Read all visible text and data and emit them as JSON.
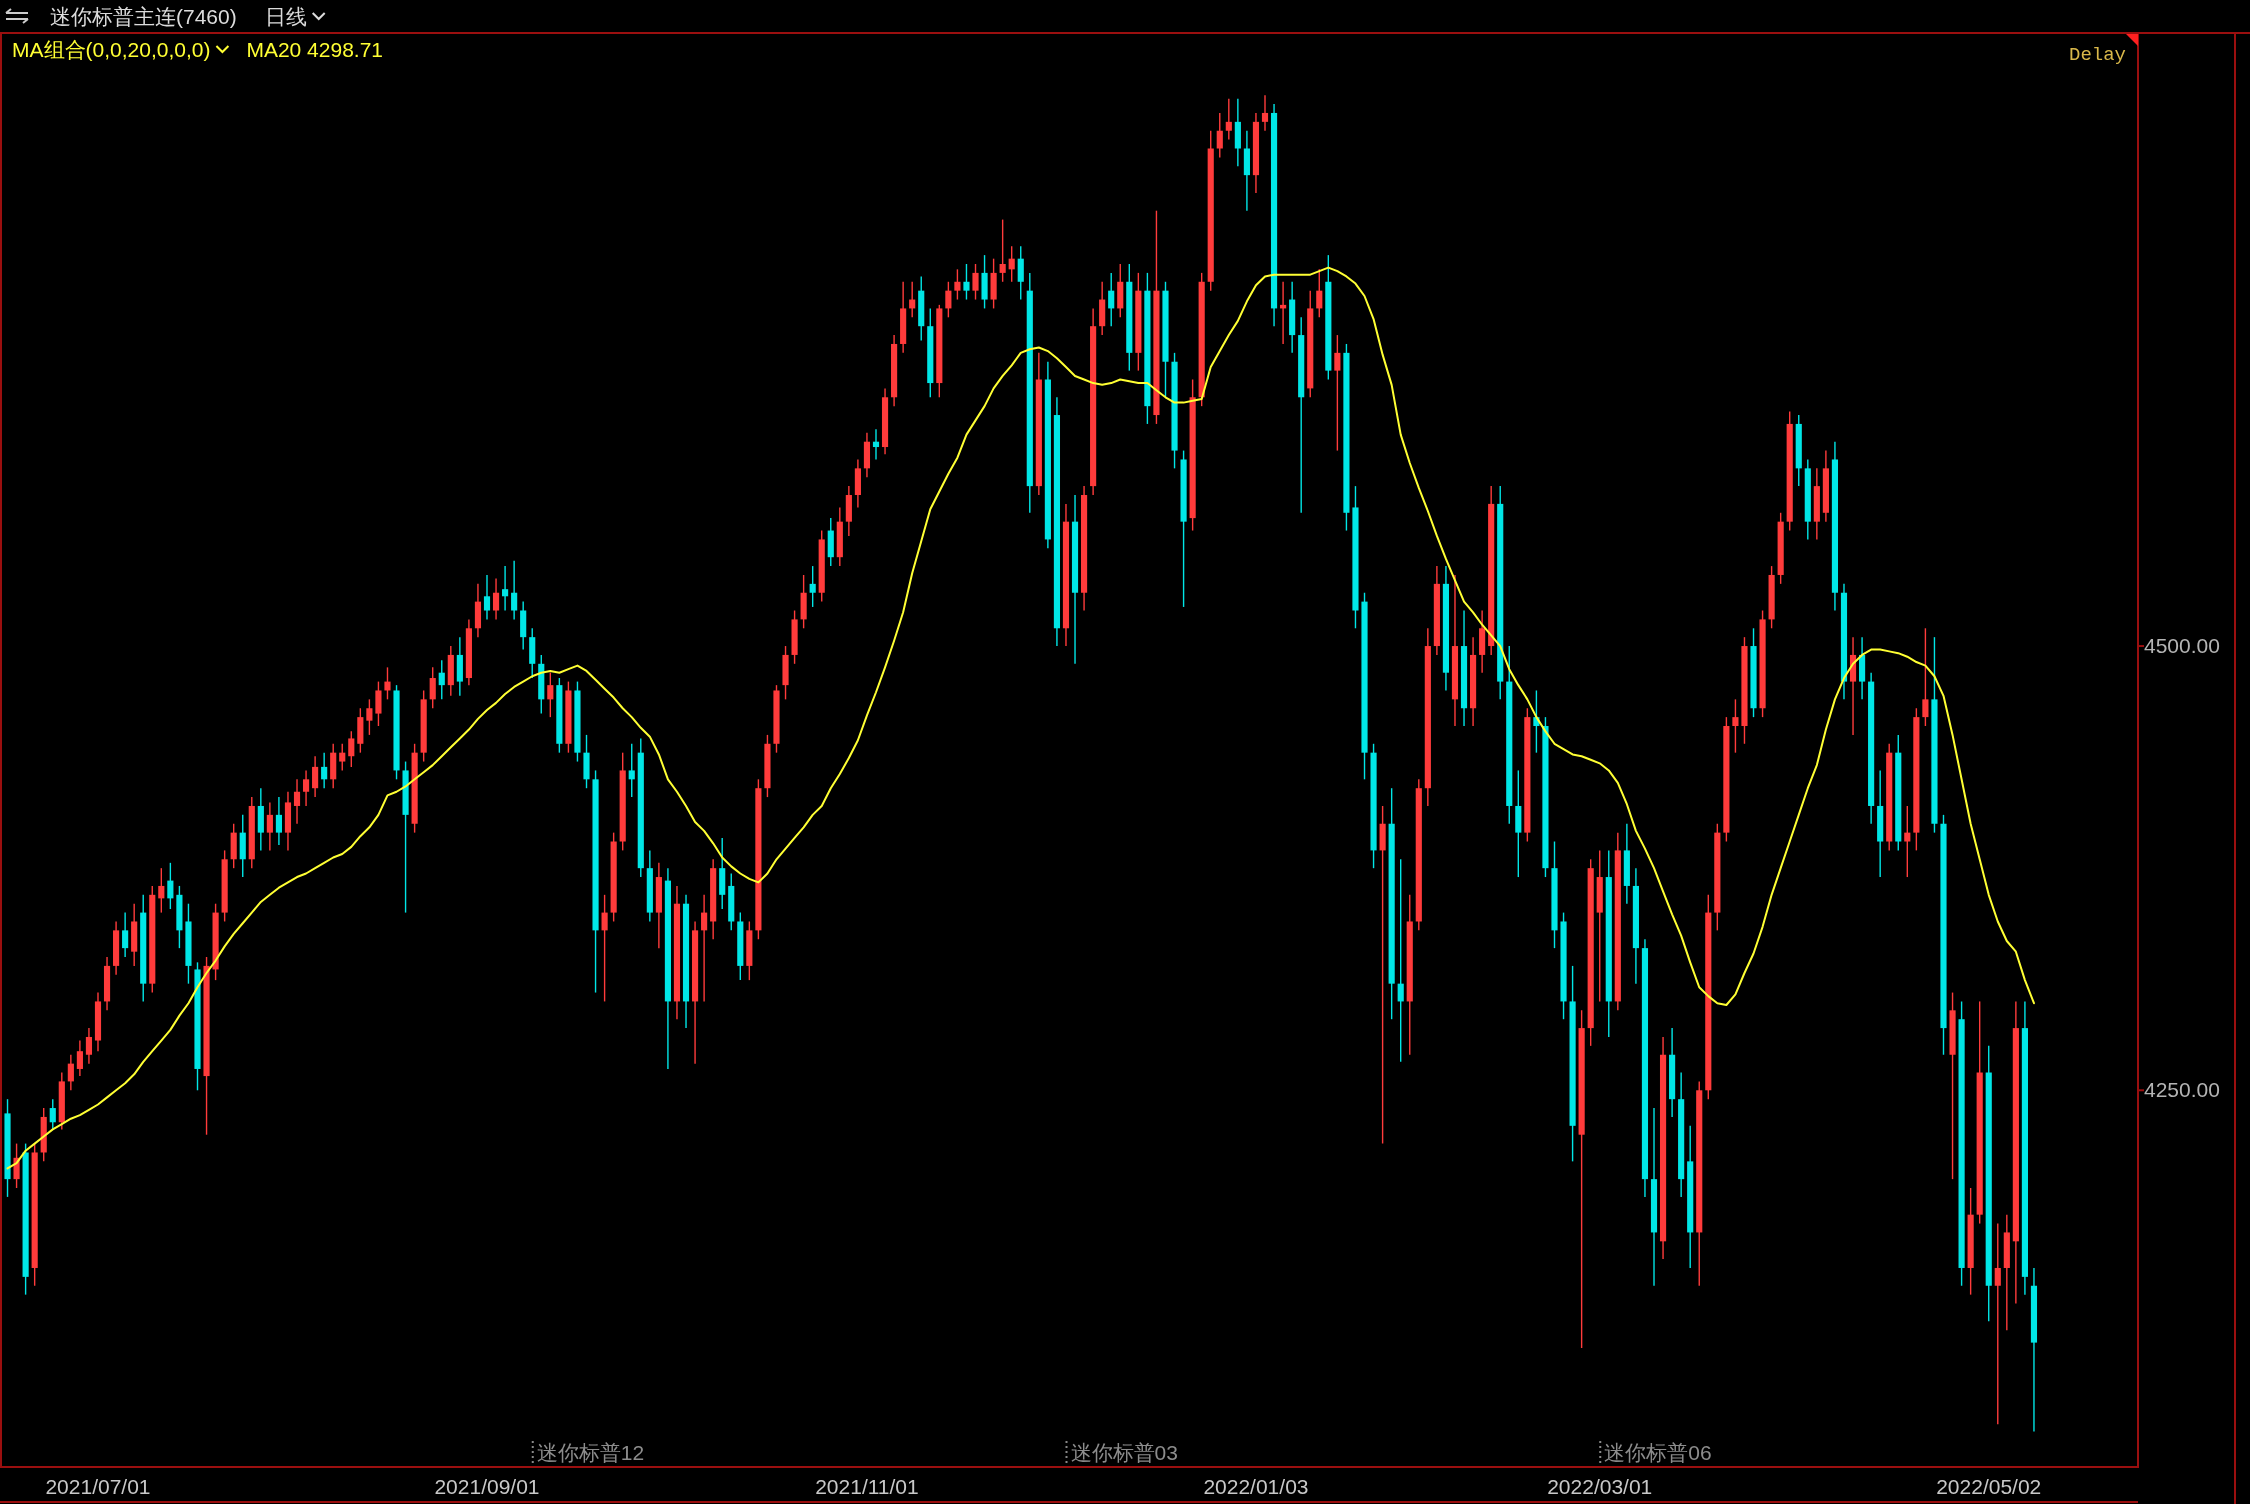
{
  "chart_data": {
    "type": "candlestick",
    "title": "迷你标普主连(7460)",
    "subtitle": "日线",
    "annotations": [
      "MA组合(0,0,20,0,0,0)",
      "Delay",
      "迷你标普12",
      "迷你标普03",
      "迷你标普06"
    ],
    "categories": [
      null,
      null,
      null,
      null,
      null,
      null,
      null,
      null,
      null,
      null,
      "2021/07/01",
      null,
      null,
      null,
      null,
      null,
      null,
      null,
      null,
      null,
      null,
      null,
      null,
      null,
      null,
      null,
      null,
      null,
      null,
      null,
      null,
      null,
      null,
      null,
      null,
      null,
      null,
      null,
      null,
      null,
      null,
      null,
      null,
      null,
      null,
      null,
      null,
      null,
      null,
      null,
      null,
      null,
      null,
      "2021/09/01",
      null,
      null,
      null,
      null,
      null,
      null,
      null,
      null,
      null,
      null,
      null,
      null,
      null,
      null,
      null,
      null,
      null,
      null,
      null,
      null,
      null,
      null,
      null,
      null,
      null,
      null,
      null,
      null,
      null,
      null,
      null,
      null,
      null,
      null,
      null,
      null,
      null,
      null,
      null,
      null,
      null,
      "2021/11/01",
      null,
      null,
      null,
      null,
      null,
      null,
      null,
      null,
      null,
      null,
      null,
      null,
      null,
      null,
      null,
      null,
      null,
      null,
      null,
      null,
      null,
      null,
      null,
      null,
      null,
      null,
      null,
      null,
      null,
      null,
      null,
      null,
      null,
      null,
      null,
      null,
      null,
      null,
      null,
      null,
      null,
      null,
      "2022/01/03",
      null,
      null,
      null,
      null,
      null,
      null,
      null,
      null,
      null,
      null,
      null,
      null,
      null,
      null,
      null,
      null,
      null,
      null,
      null,
      null,
      null,
      null,
      null,
      null,
      null,
      null,
      null,
      null,
      null,
      null,
      null,
      null,
      null,
      null,
      null,
      null,
      null,
      "2022/03/01",
      null,
      null,
      null,
      null,
      null,
      null,
      null,
      null,
      null,
      null,
      null,
      null,
      null,
      null,
      null,
      null,
      null,
      null,
      null,
      null,
      null,
      null,
      null,
      null,
      null,
      null,
      null,
      null,
      null,
      null,
      null,
      null,
      null,
      null,
      null,
      null,
      null,
      null,
      null,
      null,
      null,
      null,
      "2022/05/02",
      null,
      null,
      null,
      null,
      null
    ],
    "ohlc": [
      [
        4237,
        4245,
        4190,
        4200
      ],
      [
        4200,
        4220,
        4195,
        4212
      ],
      [
        4215,
        4220,
        4135,
        4145
      ],
      [
        4150,
        4220,
        4140,
        4215
      ],
      [
        4215,
        4240,
        4210,
        4235
      ],
      [
        4240,
        4245,
        4228,
        4232
      ],
      [
        4232,
        4260,
        4228,
        4255
      ],
      [
        4255,
        4270,
        4250,
        4265
      ],
      [
        4262,
        4278,
        4258,
        4272
      ],
      [
        4270,
        4285,
        4265,
        4280
      ],
      [
        4278,
        4305,
        4272,
        4300
      ],
      [
        4300,
        4325,
        4295,
        4320
      ],
      [
        4320,
        4345,
        4315,
        4340
      ],
      [
        4340,
        4350,
        4325,
        4330
      ],
      [
        4328,
        4355,
        4320,
        4345
      ],
      [
        4350,
        4360,
        4300,
        4310
      ],
      [
        4310,
        4365,
        4305,
        4360
      ],
      [
        4358,
        4375,
        4350,
        4365
      ],
      [
        4368,
        4378,
        4352,
        4358
      ],
      [
        4360,
        4365,
        4330,
        4340
      ],
      [
        4345,
        4355,
        4310,
        4320
      ],
      [
        4318,
        4322,
        4250,
        4262
      ],
      [
        4258,
        4325,
        4225,
        4320
      ],
      [
        4318,
        4355,
        4312,
        4350
      ],
      [
        4350,
        4385,
        4345,
        4380
      ],
      [
        4380,
        4400,
        4375,
        4395
      ],
      [
        4395,
        4405,
        4370,
        4380
      ],
      [
        4380,
        4415,
        4375,
        4410
      ],
      [
        4410,
        4420,
        4385,
        4395
      ],
      [
        4395,
        4412,
        4385,
        4405
      ],
      [
        4405,
        4415,
        4388,
        4395
      ],
      [
        4395,
        4418,
        4385,
        4412
      ],
      [
        4410,
        4425,
        4400,
        4418
      ],
      [
        4418,
        4430,
        4410,
        4425
      ],
      [
        4420,
        4438,
        4415,
        4432
      ],
      [
        4432,
        4440,
        4420,
        4425
      ],
      [
        4425,
        4445,
        4420,
        4440
      ],
      [
        4435,
        4445,
        4430,
        4440
      ],
      [
        4438,
        4452,
        4432,
        4448
      ],
      [
        4445,
        4465,
        4440,
        4460
      ],
      [
        4458,
        4470,
        4450,
        4465
      ],
      [
        4462,
        4480,
        4455,
        4475
      ],
      [
        4475,
        4488,
        4470,
        4480
      ],
      [
        4475,
        4478,
        4425,
        4430
      ],
      [
        4430,
        4435,
        4350,
        4405
      ],
      [
        4400,
        4445,
        4395,
        4440
      ],
      [
        4440,
        4475,
        4435,
        4470
      ],
      [
        4470,
        4488,
        4465,
        4482
      ],
      [
        4485,
        4492,
        4470,
        4478
      ],
      [
        4478,
        4500,
        4472,
        4495
      ],
      [
        4495,
        4505,
        4472,
        4480
      ],
      [
        4482,
        4515,
        4478,
        4510
      ],
      [
        4510,
        4535,
        4505,
        4525
      ],
      [
        4528,
        4540,
        4515,
        4520
      ],
      [
        4520,
        4538,
        4515,
        4530
      ],
      [
        4532,
        4545,
        4520,
        4528
      ],
      [
        4530,
        4548,
        4515,
        4520
      ],
      [
        4520,
        4525,
        4498,
        4505
      ],
      [
        4505,
        4510,
        4482,
        4490
      ],
      [
        4490,
        4495,
        4462,
        4470
      ],
      [
        4470,
        4485,
        4460,
        4478
      ],
      [
        4478,
        4482,
        4440,
        4445
      ],
      [
        4445,
        4480,
        4440,
        4475
      ],
      [
        4475,
        4480,
        4435,
        4440
      ],
      [
        4440,
        4450,
        4420,
        4425
      ],
      [
        4425,
        4430,
        4305,
        4340
      ],
      [
        4340,
        4360,
        4300,
        4350
      ],
      [
        4350,
        4395,
        4345,
        4390
      ],
      [
        4390,
        4440,
        4385,
        4430
      ],
      [
        4430,
        4445,
        4415,
        4425
      ],
      [
        4440,
        4448,
        4370,
        4375
      ],
      [
        4375,
        4385,
        4345,
        4350
      ],
      [
        4350,
        4378,
        4330,
        4370
      ],
      [
        4368,
        4375,
        4262,
        4300
      ],
      [
        4300,
        4365,
        4290,
        4355
      ],
      [
        4355,
        4360,
        4285,
        4300
      ],
      [
        4300,
        4345,
        4265,
        4340
      ],
      [
        4340,
        4360,
        4300,
        4350
      ],
      [
        4345,
        4380,
        4335,
        4375
      ],
      [
        4375,
        4392,
        4352,
        4360
      ],
      [
        4365,
        4372,
        4340,
        4345
      ],
      [
        4345,
        4350,
        4312,
        4320
      ],
      [
        4320,
        4345,
        4312,
        4340
      ],
      [
        4340,
        4425,
        4335,
        4420
      ],
      [
        4420,
        4450,
        4415,
        4445
      ],
      [
        4445,
        4478,
        4440,
        4475
      ],
      [
        4478,
        4500,
        4470,
        4495
      ],
      [
        4495,
        4520,
        4490,
        4515
      ],
      [
        4515,
        4540,
        4510,
        4530
      ],
      [
        4535,
        4545,
        4522,
        4530
      ],
      [
        4530,
        4565,
        4525,
        4560
      ],
      [
        4565,
        4572,
        4545,
        4550
      ],
      [
        4550,
        4578,
        4545,
        4570
      ],
      [
        4570,
        4590,
        4562,
        4585
      ],
      [
        4585,
        4605,
        4578,
        4600
      ],
      [
        4600,
        4620,
        4595,
        4615
      ],
      [
        4615,
        4622,
        4605,
        4612
      ],
      [
        4612,
        4645,
        4608,
        4640
      ],
      [
        4640,
        4675,
        4635,
        4670
      ],
      [
        4670,
        4705,
        4665,
        4690
      ],
      [
        4690,
        4705,
        4685,
        4695
      ],
      [
        4700,
        4708,
        4672,
        4680
      ],
      [
        4680,
        4690,
        4640,
        4648
      ],
      [
        4648,
        4692,
        4640,
        4690
      ],
      [
        4690,
        4705,
        4685,
        4700
      ],
      [
        4700,
        4712,
        4695,
        4705
      ],
      [
        4705,
        4715,
        4695,
        4700
      ],
      [
        4700,
        4715,
        4695,
        4710
      ],
      [
        4710,
        4720,
        4690,
        4695
      ],
      [
        4695,
        4718,
        4690,
        4710
      ],
      [
        4710,
        4740,
        4705,
        4715
      ],
      [
        4712,
        4725,
        4705,
        4718
      ],
      [
        4718,
        4725,
        4695,
        4705
      ],
      [
        4700,
        4710,
        4575,
        4590
      ],
      [
        4590,
        4665,
        4585,
        4650
      ],
      [
        4650,
        4660,
        4555,
        4560
      ],
      [
        4630,
        4640,
        4500,
        4510
      ],
      [
        4510,
        4580,
        4500,
        4570
      ],
      [
        4570,
        4585,
        4490,
        4530
      ],
      [
        4530,
        4590,
        4520,
        4585
      ],
      [
        4590,
        4690,
        4585,
        4680
      ],
      [
        4680,
        4705,
        4675,
        4695
      ],
      [
        4700,
        4710,
        4680,
        4690
      ],
      [
        4690,
        4715,
        4685,
        4705
      ],
      [
        4705,
        4715,
        4655,
        4665
      ],
      [
        4665,
        4710,
        4655,
        4700
      ],
      [
        4700,
        4710,
        4625,
        4635
      ],
      [
        4630,
        4745,
        4625,
        4700
      ],
      [
        4700,
        4705,
        4640,
        4660
      ],
      [
        4660,
        4665,
        4600,
        4610
      ],
      [
        4605,
        4610,
        4522,
        4570
      ],
      [
        4572,
        4650,
        4565,
        4640
      ],
      [
        4640,
        4710,
        4635,
        4705
      ],
      [
        4705,
        4790,
        4700,
        4780
      ],
      [
        4780,
        4800,
        4775,
        4790
      ],
      [
        4790,
        4808,
        4785,
        4795
      ],
      [
        4795,
        4808,
        4770,
        4780
      ],
      [
        4780,
        4790,
        4745,
        4765
      ],
      [
        4765,
        4800,
        4755,
        4795
      ],
      [
        4795,
        4810,
        4790,
        4800
      ],
      [
        4800,
        4805,
        4680,
        4690
      ],
      [
        4690,
        4705,
        4670,
        4692
      ],
      [
        4695,
        4705,
        4665,
        4675
      ],
      [
        4675,
        4685,
        4575,
        4640
      ],
      [
        4645,
        4700,
        4640,
        4690
      ],
      [
        4690,
        4712,
        4685,
        4700
      ],
      [
        4705,
        4720,
        4650,
        4655
      ],
      [
        4655,
        4675,
        4610,
        4665
      ],
      [
        4665,
        4670,
        4565,
        4575
      ],
      [
        4578,
        4590,
        4510,
        4520
      ],
      [
        4525,
        4530,
        4425,
        4440
      ],
      [
        4440,
        4445,
        4375,
        4385
      ],
      [
        4385,
        4410,
        4220,
        4400
      ],
      [
        4400,
        4420,
        4290,
        4310
      ],
      [
        4310,
        4380,
        4266,
        4300
      ],
      [
        4300,
        4360,
        4270,
        4345
      ],
      [
        4345,
        4425,
        4340,
        4420
      ],
      [
        4420,
        4510,
        4410,
        4500
      ],
      [
        4500,
        4545,
        4495,
        4535
      ],
      [
        4535,
        4545,
        4475,
        4485
      ],
      [
        4470,
        4540,
        4455,
        4500
      ],
      [
        4500,
        4520,
        4455,
        4465
      ],
      [
        4465,
        4505,
        4455,
        4495
      ],
      [
        4495,
        4520,
        4485,
        4510
      ],
      [
        4500,
        4590,
        4495,
        4580
      ],
      [
        4580,
        4590,
        4470,
        4480
      ],
      [
        4480,
        4500,
        4400,
        4410
      ],
      [
        4410,
        4430,
        4370,
        4395
      ],
      [
        4395,
        4465,
        4390,
        4460
      ],
      [
        4460,
        4475,
        4440,
        4455
      ],
      [
        4455,
        4460,
        4370,
        4375
      ],
      [
        4375,
        4390,
        4330,
        4340
      ],
      [
        4345,
        4350,
        4290,
        4300
      ],
      [
        4300,
        4320,
        4210,
        4230
      ],
      [
        4225,
        4295,
        4105,
        4285
      ],
      [
        4285,
        4380,
        4275,
        4375
      ],
      [
        4350,
        4385,
        4300,
        4370
      ],
      [
        4370,
        4385,
        4280,
        4300
      ],
      [
        4300,
        4395,
        4295,
        4385
      ],
      [
        4385,
        4400,
        4355,
        4365
      ],
      [
        4365,
        4375,
        4310,
        4330
      ],
      [
        4330,
        4335,
        4190,
        4200
      ],
      [
        4200,
        4240,
        4140,
        4170
      ],
      [
        4165,
        4280,
        4155,
        4270
      ],
      [
        4270,
        4285,
        4235,
        4245
      ],
      [
        4245,
        4260,
        4190,
        4200
      ],
      [
        4210,
        4230,
        4150,
        4170
      ],
      [
        4170,
        4255,
        4140,
        4250
      ],
      [
        4250,
        4360,
        4245,
        4350
      ],
      [
        4350,
        4400,
        4340,
        4395
      ],
      [
        4395,
        4460,
        4390,
        4455
      ],
      [
        4455,
        4470,
        4440,
        4460
      ],
      [
        4455,
        4505,
        4445,
        4500
      ],
      [
        4500,
        4510,
        4460,
        4465
      ],
      [
        4465,
        4520,
        4460,
        4515
      ],
      [
        4515,
        4545,
        4510,
        4540
      ],
      [
        4540,
        4575,
        4535,
        4570
      ],
      [
        4570,
        4632,
        4565,
        4625
      ],
      [
        4625,
        4630,
        4590,
        4600
      ],
      [
        4600,
        4605,
        4560,
        4570
      ],
      [
        4570,
        4600,
        4560,
        4590
      ],
      [
        4575,
        4610,
        4570,
        4600
      ],
      [
        4605,
        4615,
        4520,
        4530
      ],
      [
        4530,
        4535,
        4470,
        4480
      ],
      [
        4480,
        4505,
        4450,
        4495
      ],
      [
        4495,
        4505,
        4470,
        4480
      ],
      [
        4480,
        4485,
        4400,
        4410
      ],
      [
        4410,
        4430,
        4370,
        4390
      ],
      [
        4390,
        4445,
        4385,
        4440
      ],
      [
        4440,
        4450,
        4385,
        4390
      ],
      [
        4390,
        4410,
        4370,
        4395
      ],
      [
        4395,
        4465,
        4385,
        4460
      ],
      [
        4460,
        4510,
        4455,
        4470
      ],
      [
        4470,
        4505,
        4395,
        4400
      ],
      [
        4400,
        4405,
        4270,
        4285
      ],
      [
        4270,
        4305,
        4200,
        4295
      ],
      [
        4290,
        4300,
        4140,
        4150
      ],
      [
        4150,
        4195,
        4135,
        4180
      ],
      [
        4180,
        4300,
        4175,
        4260
      ],
      [
        4260,
        4275,
        4120,
        4140
      ],
      [
        4140,
        4175,
        4062,
        4150
      ],
      [
        4150,
        4180,
        4115,
        4170
      ],
      [
        4165,
        4300,
        4130,
        4285
      ],
      [
        4285,
        4300,
        4135,
        4145
      ],
      [
        4140,
        4150,
        4058,
        4108
      ]
    ],
    "colors": [
      "#00e6e6",
      "#ff3b3b",
      "#00e6e6",
      "#ff3b3b",
      "#ff3b3b",
      "#00e6e6",
      "#ff3b3b",
      "#ff3b3b",
      "#ff3b3b",
      "#ff3b3b",
      "#ff3b3b",
      "#ff3b3b",
      "#ff3b3b",
      "#00e6e6",
      "#ff3b3b",
      "#00e6e6",
      "#ff3b3b",
      "#ff3b3b",
      "#00e6e6",
      "#00e6e6",
      "#00e6e6",
      "#00e6e6",
      "#ff3b3b",
      "#ff3b3b",
      "#ff3b3b",
      "#ff3b3b",
      "#00e6e6",
      "#ff3b3b",
      "#00e6e6",
      "#ff3b3b",
      "#00e6e6",
      "#ff3b3b",
      "#ff3b3b",
      "#ff3b3b",
      "#ff3b3b",
      "#00e6e6",
      "#ff3b3b",
      "#ff3b3b",
      "#ff3b3b",
      "#ff3b3b",
      "#ff3b3b",
      "#ff3b3b",
      "#ff3b3b",
      "#00e6e6",
      "#00e6e6",
      "#ff3b3b",
      "#ff3b3b",
      "#ff3b3b",
      "#00e6e6",
      "#ff3b3b",
      "#00e6e6",
      "#ff3b3b",
      "#ff3b3b",
      "#00e6e6",
      "#ff3b3b",
      "#00e6e6",
      "#00e6e6",
      "#00e6e6",
      "#00e6e6",
      "#00e6e6",
      "#ff3b3b",
      "#00e6e6",
      "#ff3b3b",
      "#00e6e6",
      "#00e6e6",
      "#00e6e6",
      "#ff3b3b",
      "#ff3b3b",
      "#ff3b3b",
      "#00e6e6",
      "#00e6e6",
      "#00e6e6",
      "#ff3b3b",
      "#00e6e6",
      "#ff3b3b",
      "#00e6e6",
      "#ff3b3b",
      "#ff3b3b",
      "#ff3b3b",
      "#00e6e6",
      "#00e6e6",
      "#00e6e6",
      "#ff3b3b",
      "#ff3b3b",
      "#ff3b3b",
      "#ff3b3b",
      "#ff3b3b",
      "#ff3b3b",
      "#ff3b3b",
      "#00e6e6",
      "#ff3b3b",
      "#00e6e6",
      "#ff3b3b",
      "#ff3b3b",
      "#ff3b3b",
      "#ff3b3b",
      "#00e6e6",
      "#ff3b3b",
      "#ff3b3b",
      "#ff3b3b",
      "#ff3b3b",
      "#00e6e6",
      "#00e6e6",
      "#ff3b3b",
      "#ff3b3b",
      "#ff3b3b",
      "#00e6e6",
      "#ff3b3b",
      "#00e6e6",
      "#ff3b3b",
      "#ff3b3b",
      "#ff3b3b",
      "#00e6e6",
      "#00e6e6",
      "#ff3b3b",
      "#00e6e6",
      "#00e6e6",
      "#ff3b3b",
      "#00e6e6",
      "#ff3b3b",
      "#ff3b3b",
      "#ff3b3b",
      "#00e6e6",
      "#ff3b3b",
      "#00e6e6",
      "#ff3b3b",
      "#00e6e6",
      "#ff3b3b",
      "#00e6e6",
      "#00e6e6",
      "#00e6e6",
      "#ff3b3b",
      "#ff3b3b",
      "#ff3b3b",
      "#ff3b3b",
      "#ff3b3b",
      "#00e6e6",
      "#00e6e6",
      "#ff3b3b",
      "#ff3b3b",
      "#00e6e6",
      "#ff3b3b",
      "#00e6e6",
      "#00e6e6",
      "#ff3b3b",
      "#ff3b3b",
      "#00e6e6",
      "#ff3b3b",
      "#00e6e6",
      "#00e6e6",
      "#00e6e6",
      "#00e6e6",
      "#ff3b3b",
      "#00e6e6",
      "#00e6e6",
      "#ff3b3b",
      "#ff3b3b",
      "#ff3b3b",
      "#ff3b3b",
      "#00e6e6",
      "#ff3b3b",
      "#00e6e6",
      "#ff3b3b",
      "#ff3b3b",
      "#ff3b3b",
      "#00e6e6",
      "#00e6e6",
      "#00e6e6",
      "#ff3b3b",
      "#00e6e6",
      "#00e6e6",
      "#00e6e6",
      "#00e6e6",
      "#00e6e6",
      "#ff3b3b",
      "#ff3b3b",
      "#ff3b3b",
      "#00e6e6",
      "#ff3b3b",
      "#00e6e6",
      "#00e6e6",
      "#00e6e6",
      "#00e6e6",
      "#ff3b3b",
      "#00e6e6",
      "#00e6e6",
      "#00e6e6",
      "#ff3b3b",
      "#ff3b3b",
      "#ff3b3b",
      "#ff3b3b",
      "#ff3b3b",
      "#ff3b3b",
      "#00e6e6",
      "#ff3b3b",
      "#ff3b3b",
      "#ff3b3b",
      "#ff3b3b",
      "#00e6e6",
      "#00e6e6",
      "#ff3b3b",
      "#ff3b3b",
      "#00e6e6",
      "#00e6e6",
      "#ff3b3b",
      "#00e6e6",
      "#00e6e6",
      "#00e6e6",
      "#ff3b3b",
      "#00e6e6",
      "#ff3b3b",
      "#ff3b3b",
      "#ff3b3b",
      "#00e6e6",
      "#00e6e6",
      "#ff3b3b",
      "#00e6e6",
      "#ff3b3b",
      "#ff3b3b",
      "#00e6e6",
      "#ff3b3b",
      "#ff3b3b",
      "#ff3b3b",
      "#00e6e6",
      "#00e6e6"
    ],
    "series": [
      {
        "name": "MA20 4298.71",
        "type": "line",
        "color": "#ffff33",
        "values": [
          4206,
          4209,
          4216,
          4220,
          4224,
          4228,
          4231,
          4234,
          4236,
          4239,
          4242,
          4246,
          4250,
          4254,
          4259,
          4266,
          4272,
          4278,
          4284,
          4292,
          4299,
          4308,
          4316,
          4323,
          4331,
          4338,
          4344,
          4350,
          4356,
          4360,
          4364,
          4367,
          4370,
          4372,
          4375,
          4378,
          4381,
          4383,
          4387,
          4393,
          4398,
          4405,
          4416,
          4418,
          4421,
          4425,
          4429,
          4433,
          4438,
          4443,
          4448,
          4453,
          4459,
          4464,
          4468,
          4473,
          4477,
          4480,
          4483,
          4485,
          4486,
          4485,
          4487,
          4489,
          4486,
          4481,
          4476,
          4471,
          4465,
          4460,
          4454,
          4449,
          4439,
          4425,
          4418,
          4410,
          4401,
          4396,
          4389,
          4381,
          4376,
          4372,
          4369,
          4367,
          4372,
          4380,
          4386,
          4392,
          4398,
          4405,
          4410,
          4420,
          4428,
          4437,
          4447,
          4461,
          4474,
          4488,
          4503,
          4519,
          4541,
          4559,
          4577,
          4587,
          4597,
          4606,
          4619,
          4627,
          4635,
          4645,
          4652,
          4658,
          4665,
          4667,
          4668,
          4666,
          4662,
          4657,
          4652,
          4650,
          4648,
          4647,
          4648,
          4650,
          4649,
          4648,
          4648,
          4644,
          4640,
          4637,
          4637,
          4638,
          4639,
          4657,
          4666,
          4675,
          4683,
          4694,
          4703,
          4708,
          4709,
          4709,
          4709,
          4709,
          4709,
          4711,
          4713,
          4711,
          4708,
          4704,
          4697,
          4684,
          4664,
          4647,
          4619,
          4603,
          4589,
          4576,
          4562,
          4549,
          4537,
          4525,
          4519,
          4512,
          4506,
          4500,
          4487,
          4478,
          4470,
          4460,
          4452,
          4445,
          4442,
          4439,
          4438,
          4436,
          4434,
          4430,
          4423,
          4411,
          4396,
          4386,
          4375,
          4362,
          4349,
          4337,
          4322,
          4308,
          4303,
          4299,
          4298,
          4304,
          4316,
          4327,
          4342,
          4360,
          4375,
          4390,
          4405,
          4420,
          4433,
          4453,
          4470,
          4482,
          4490,
          4495,
          4498,
          4498,
          4497,
          4496,
          4494,
          4491,
          4489,
          4483,
          4472,
          4450,
          4425,
          4400,
          4380,
          4360,
          4345,
          4334,
          4328,
          4312,
          4299
        ]
      }
    ],
    "ylim": [
      4038,
      4845
    ],
    "yticks": [
      {
        "value": 4500,
        "label": "4500.00"
      },
      {
        "value": 4250,
        "label": "4250.00"
      }
    ],
    "legend": "top left"
  }
}
